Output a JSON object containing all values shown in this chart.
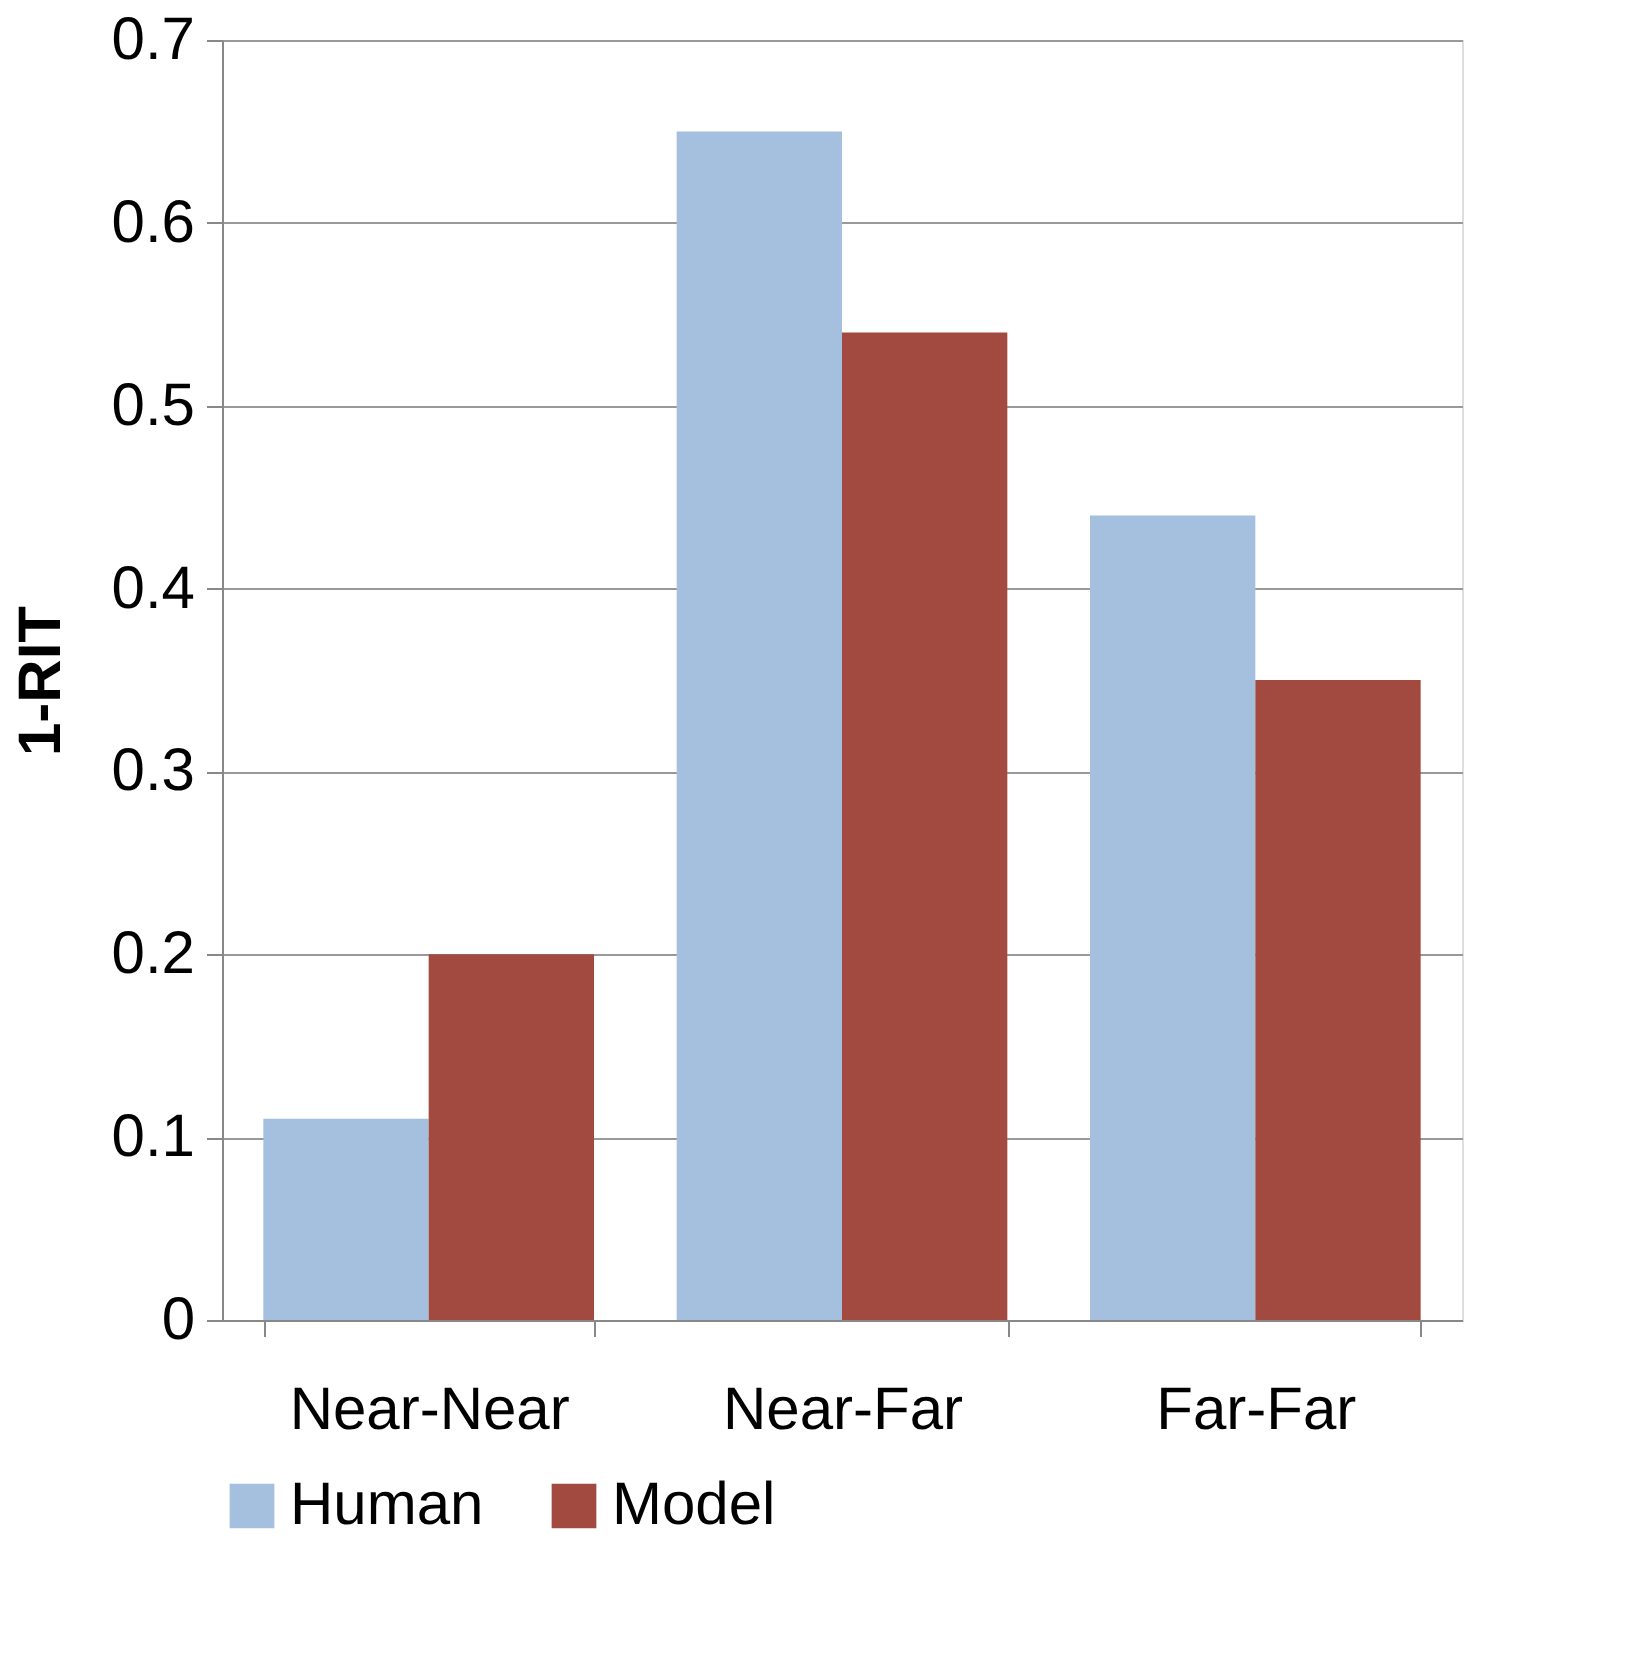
{
  "chart_data": {
    "type": "bar",
    "ylabel": "1-RIT",
    "categories": [
      "Near-Near",
      "Near-Far",
      "Far-Far"
    ],
    "series": [
      {
        "name": "Human",
        "color": "#a5bfdf",
        "values": [
          0.11,
          0.65,
          0.44
        ]
      },
      {
        "name": "Model",
        "color": "#a34a40",
        "values": [
          0.2,
          0.54,
          0.35
        ]
      }
    ],
    "ylim": [
      0,
      0.7
    ],
    "yticks": [
      0,
      0.1,
      0.2,
      0.3,
      0.4,
      0.5,
      0.6,
      0.7
    ],
    "grid": "y",
    "legend": "bottom"
  }
}
